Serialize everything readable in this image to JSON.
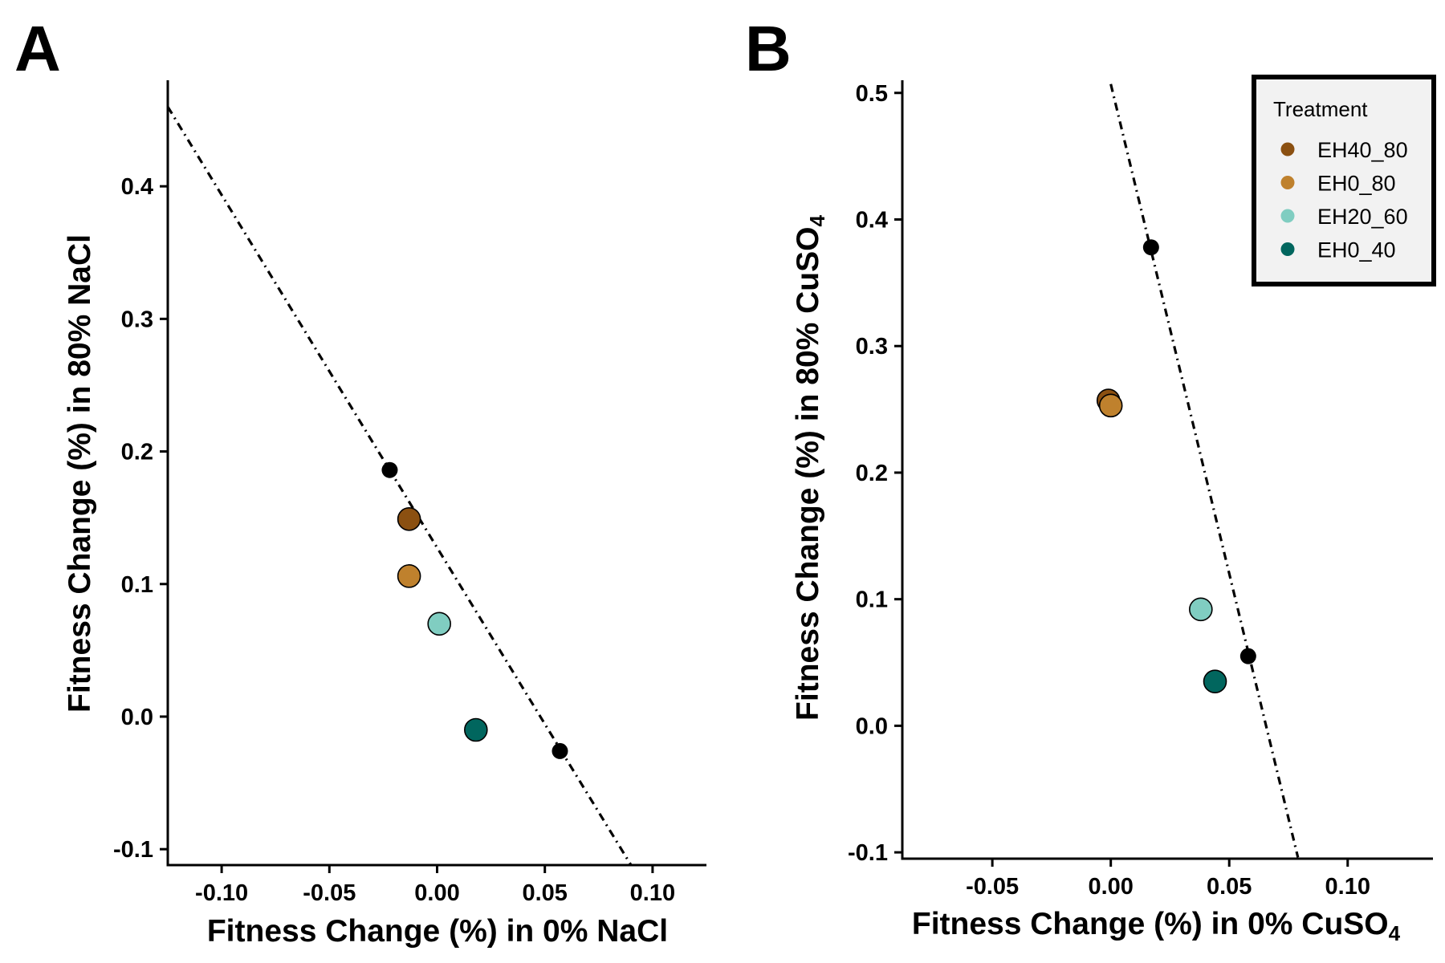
{
  "chart_data": [
    {
      "type": "scatter",
      "panel_label": "A",
      "xlabel": "Fitness Change (%) in 0% NaCl",
      "ylabel": "Fitness Change (%) in 80% NaCl",
      "xlim": [
        -0.125,
        0.125
      ],
      "ylim": [
        -0.112,
        0.48
      ],
      "x_ticks": [
        -0.1,
        -0.05,
        0.0,
        0.05,
        0.1
      ],
      "x_tick_labels": [
        "-0.10",
        "-0.05",
        "0.00",
        "0.05",
        "0.10"
      ],
      "y_ticks": [
        -0.1,
        0.0,
        0.1,
        0.2,
        0.3,
        0.4
      ],
      "y_tick_labels": [
        "-0.1",
        "0.0",
        "0.1",
        "0.2",
        "0.3",
        "0.4"
      ],
      "grid": false,
      "reference_line": {
        "style": "dashdot",
        "points": [
          [
            -0.125,
            0.46
          ],
          [
            0.09,
            -0.112
          ]
        ]
      },
      "reference_points": [
        {
          "x": -0.022,
          "y": 0.186
        },
        {
          "x": 0.057,
          "y": -0.026
        }
      ],
      "series": [
        {
          "name": "EH40_80",
          "x": [
            -0.013
          ],
          "y": [
            0.149
          ]
        },
        {
          "name": "EH0_80",
          "x": [
            -0.013
          ],
          "y": [
            0.106
          ]
        },
        {
          "name": "EH20_60",
          "x": [
            0.001
          ],
          "y": [
            0.07
          ]
        },
        {
          "name": "EH0_40",
          "x": [
            0.018
          ],
          "y": [
            -0.01
          ]
        }
      ]
    },
    {
      "type": "scatter",
      "panel_label": "B",
      "xlabel_main": "Fitness Change (%) in 0% CuSO",
      "xlabel_sub": "4",
      "ylabel_main": "Fitness Change (%) in 80% CuSO",
      "ylabel_sub": "4",
      "xlim": [
        -0.088,
        0.136
      ],
      "ylim": [
        -0.105,
        0.51
      ],
      "x_ticks": [
        -0.05,
        0.0,
        0.05,
        0.1
      ],
      "x_tick_labels": [
        "-0.05",
        "0.00",
        "0.05",
        "0.10"
      ],
      "y_ticks": [
        -0.1,
        0.0,
        0.1,
        0.2,
        0.3,
        0.4,
        0.5
      ],
      "y_tick_labels": [
        "-0.1",
        "0.0",
        "0.1",
        "0.2",
        "0.3",
        "0.4",
        "0.5"
      ],
      "grid": false,
      "reference_line": {
        "style": "dashdot",
        "points": [
          [
            0.0,
            0.507
          ],
          [
            0.079,
            -0.104
          ]
        ]
      },
      "reference_points": [
        {
          "x": 0.017,
          "y": 0.378
        },
        {
          "x": 0.058,
          "y": 0.055
        }
      ],
      "series": [
        {
          "name": "EH40_80",
          "x": [
            -0.001
          ],
          "y": [
            0.257
          ]
        },
        {
          "name": "EH0_80",
          "x": [
            0.0
          ],
          "y": [
            0.253
          ]
        },
        {
          "name": "EH20_60",
          "x": [
            0.038
          ],
          "y": [
            0.092
          ]
        },
        {
          "name": "EH0_40",
          "x": [
            0.044
          ],
          "y": [
            0.035
          ]
        }
      ],
      "legend": {
        "title": "Treatment",
        "position": "top-right",
        "entries": [
          "EH40_80",
          "EH0_80",
          "EH20_60",
          "EH0_40"
        ]
      }
    }
  ],
  "colors": {
    "EH40_80": "#8b5011",
    "EH0_80": "#bf812d",
    "EH20_60": "#80cdc1",
    "EH0_40": "#01665e",
    "reference": "#000000"
  }
}
